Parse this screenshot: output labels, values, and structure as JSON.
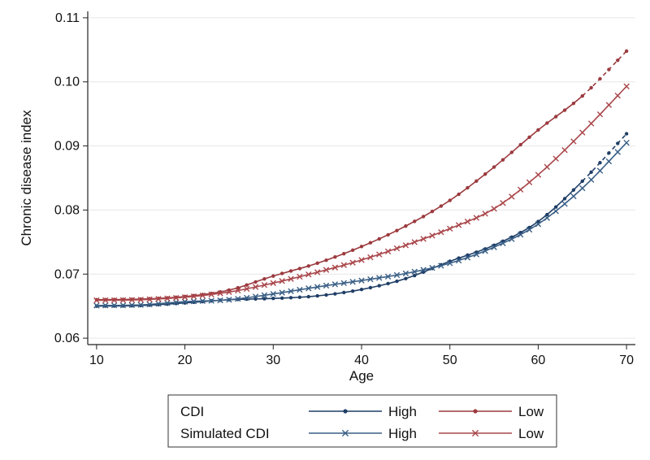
{
  "chart_data": {
    "type": "line",
    "title": "",
    "xlabel": "Age",
    "ylabel": "Chronic disease index",
    "xlim": [
      9,
      71
    ],
    "ylim": [
      0.059,
      0.111
    ],
    "xticks": [
      10,
      20,
      30,
      40,
      50,
      60,
      70
    ],
    "yticks": [
      0.06,
      0.07,
      0.08,
      0.09,
      0.1,
      0.11
    ],
    "ytick_labels": [
      "0.06",
      "0.07",
      "0.08",
      "0.09",
      "0.10",
      "0.11"
    ],
    "grid": "horizontal",
    "legend": {
      "placement": "bottom",
      "rows": [
        {
          "label": "CDI",
          "entries": [
            {
              "series": "CDI High",
              "label": "High"
            },
            {
              "series": "CDI Low",
              "label": "Low"
            }
          ]
        },
        {
          "label": "Simulated CDI",
          "entries": [
            {
              "series": "Simulated CDI High",
              "label": "High"
            },
            {
              "series": "Simulated CDI Low",
              "label": "Low"
            }
          ]
        }
      ]
    },
    "series": [
      {
        "name": "CDI High",
        "group": "High",
        "marker": "dot",
        "color": "#1f3e66",
        "dashed_after": 65,
        "points": [
          [
            10,
            0.065
          ],
          [
            15,
            0.0651
          ],
          [
            20,
            0.0655
          ],
          [
            25,
            0.066
          ],
          [
            30,
            0.0662
          ],
          [
            35,
            0.0666
          ],
          [
            40,
            0.0676
          ],
          [
            45,
            0.0693
          ],
          [
            50,
            0.072
          ],
          [
            55,
            0.0745
          ],
          [
            60,
            0.0782
          ],
          [
            65,
            0.0845
          ],
          [
            70,
            0.0919
          ]
        ]
      },
      {
        "name": "CDI Low",
        "group": "Low",
        "marker": "dot",
        "color": "#9b3a3e",
        "dashed_after": 65,
        "points": [
          [
            10,
            0.066
          ],
          [
            15,
            0.0661
          ],
          [
            20,
            0.0665
          ],
          [
            25,
            0.0675
          ],
          [
            30,
            0.0697
          ],
          [
            35,
            0.0717
          ],
          [
            40,
            0.0743
          ],
          [
            45,
            0.0775
          ],
          [
            50,
            0.0815
          ],
          [
            55,
            0.0867
          ],
          [
            60,
            0.0925
          ],
          [
            65,
            0.0978
          ],
          [
            70,
            0.1048
          ]
        ]
      },
      {
        "name": "Simulated CDI High",
        "group": "High",
        "marker": "x",
        "color": "#3a5f86",
        "dashed_after": 70,
        "points": [
          [
            10,
            0.0651
          ],
          [
            15,
            0.0652
          ],
          [
            20,
            0.0657
          ],
          [
            25,
            0.066
          ],
          [
            30,
            0.0669
          ],
          [
            35,
            0.068
          ],
          [
            40,
            0.069
          ],
          [
            45,
            0.0701
          ],
          [
            50,
            0.0717
          ],
          [
            55,
            0.0742
          ],
          [
            60,
            0.0778
          ],
          [
            65,
            0.0834
          ],
          [
            70,
            0.0905
          ]
        ]
      },
      {
        "name": "Simulated CDI Low",
        "group": "Low",
        "marker": "x",
        "color": "#a9474b",
        "dashed_after": 70,
        "points": [
          [
            10,
            0.0659
          ],
          [
            15,
            0.066
          ],
          [
            20,
            0.0664
          ],
          [
            25,
            0.0672
          ],
          [
            30,
            0.0686
          ],
          [
            35,
            0.0703
          ],
          [
            40,
            0.0722
          ],
          [
            45,
            0.0745
          ],
          [
            50,
            0.0771
          ],
          [
            55,
            0.0802
          ],
          [
            60,
            0.0855
          ],
          [
            65,
            0.0921
          ],
          [
            70,
            0.0993
          ]
        ]
      }
    ]
  }
}
